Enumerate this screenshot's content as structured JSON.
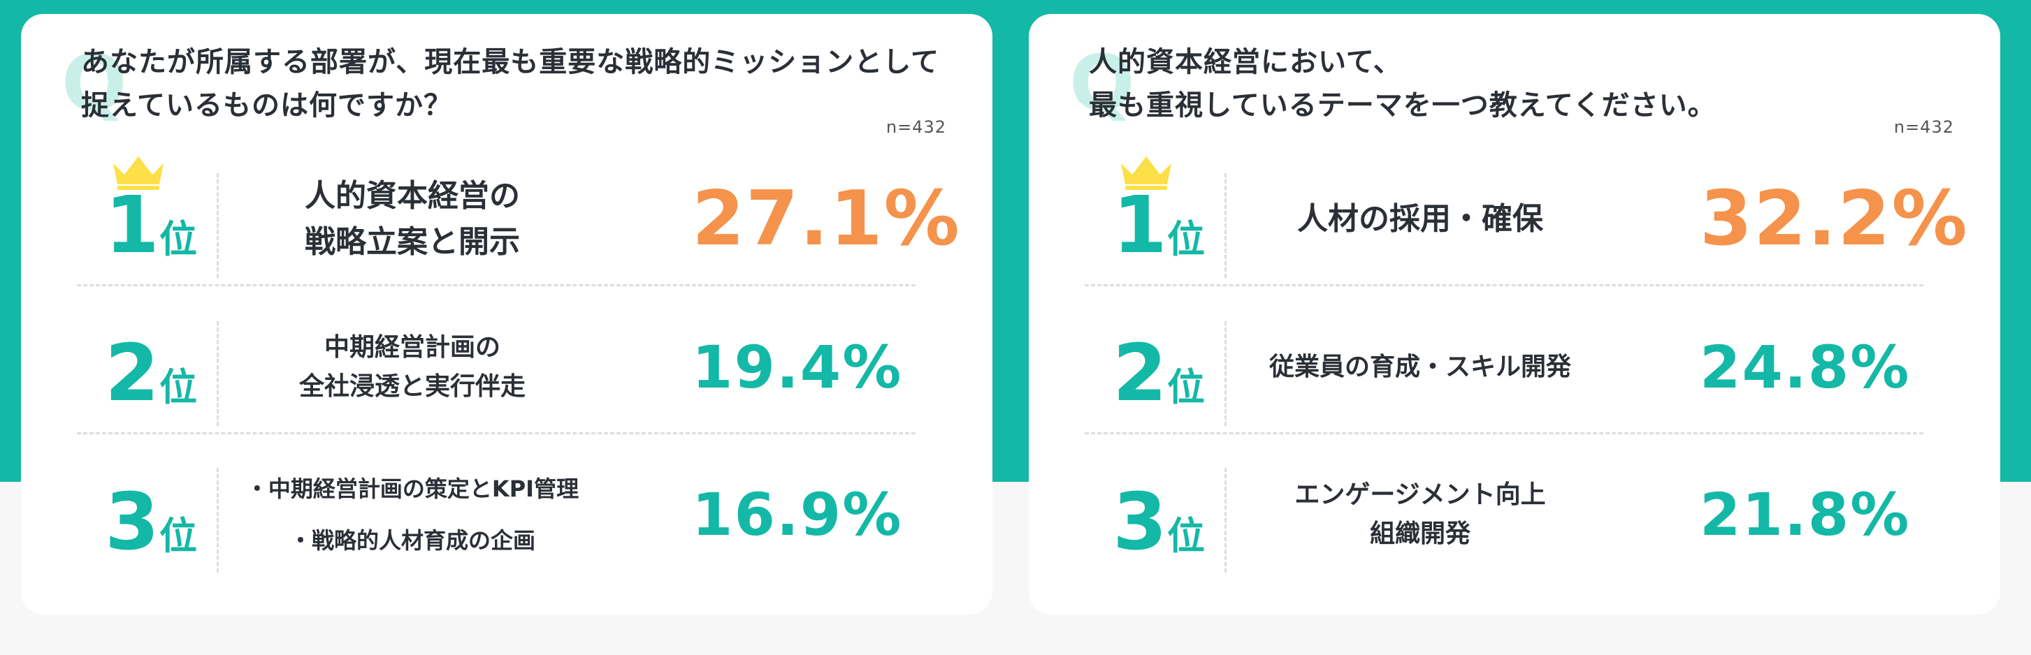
{
  "colors": {
    "teal": "#14b8a6",
    "orange": "#f5924b",
    "crown": "#fde047"
  },
  "left": {
    "q_mark": "Q",
    "question": [
      "あなたが所属する部署が、現在最も重要な戦略的ミッションとして",
      "捉えているものは何ですか？"
    ],
    "n": "n=432",
    "ranks": [
      {
        "num": "1",
        "suffix": "位",
        "label": [
          "人的資本経営の",
          "戦略立案と開示"
        ],
        "percent": "27.1%",
        "value": 27.1
      },
      {
        "num": "2",
        "suffix": "位",
        "label": [
          "中期経営計画の",
          "全社浸透と実行伴走"
        ],
        "percent": "19.4%",
        "value": 19.4
      },
      {
        "num": "3",
        "suffix": "位",
        "label": [
          "・中期経営計画の策定とKPI管理",
          "・戦略的人材育成の企画"
        ],
        "percent": "16.9%",
        "value": 16.9
      }
    ]
  },
  "right": {
    "q_mark": "Q",
    "question": [
      "人的資本経営において、",
      "最も重視しているテーマを一つ教えてください。"
    ],
    "n": "n=432",
    "ranks": [
      {
        "num": "1",
        "suffix": "位",
        "label": [
          "人材の採用・確保"
        ],
        "percent": "32.2%",
        "value": 32.2
      },
      {
        "num": "2",
        "suffix": "位",
        "label": [
          "従業員の育成・スキル開発"
        ],
        "percent": "24.8%",
        "value": 24.8
      },
      {
        "num": "3",
        "suffix": "位",
        "label": [
          "エンゲージメント向上",
          "組織開発"
        ],
        "percent": "21.8%",
        "value": 21.8
      }
    ]
  },
  "icons": {
    "crown": "crown-icon"
  }
}
